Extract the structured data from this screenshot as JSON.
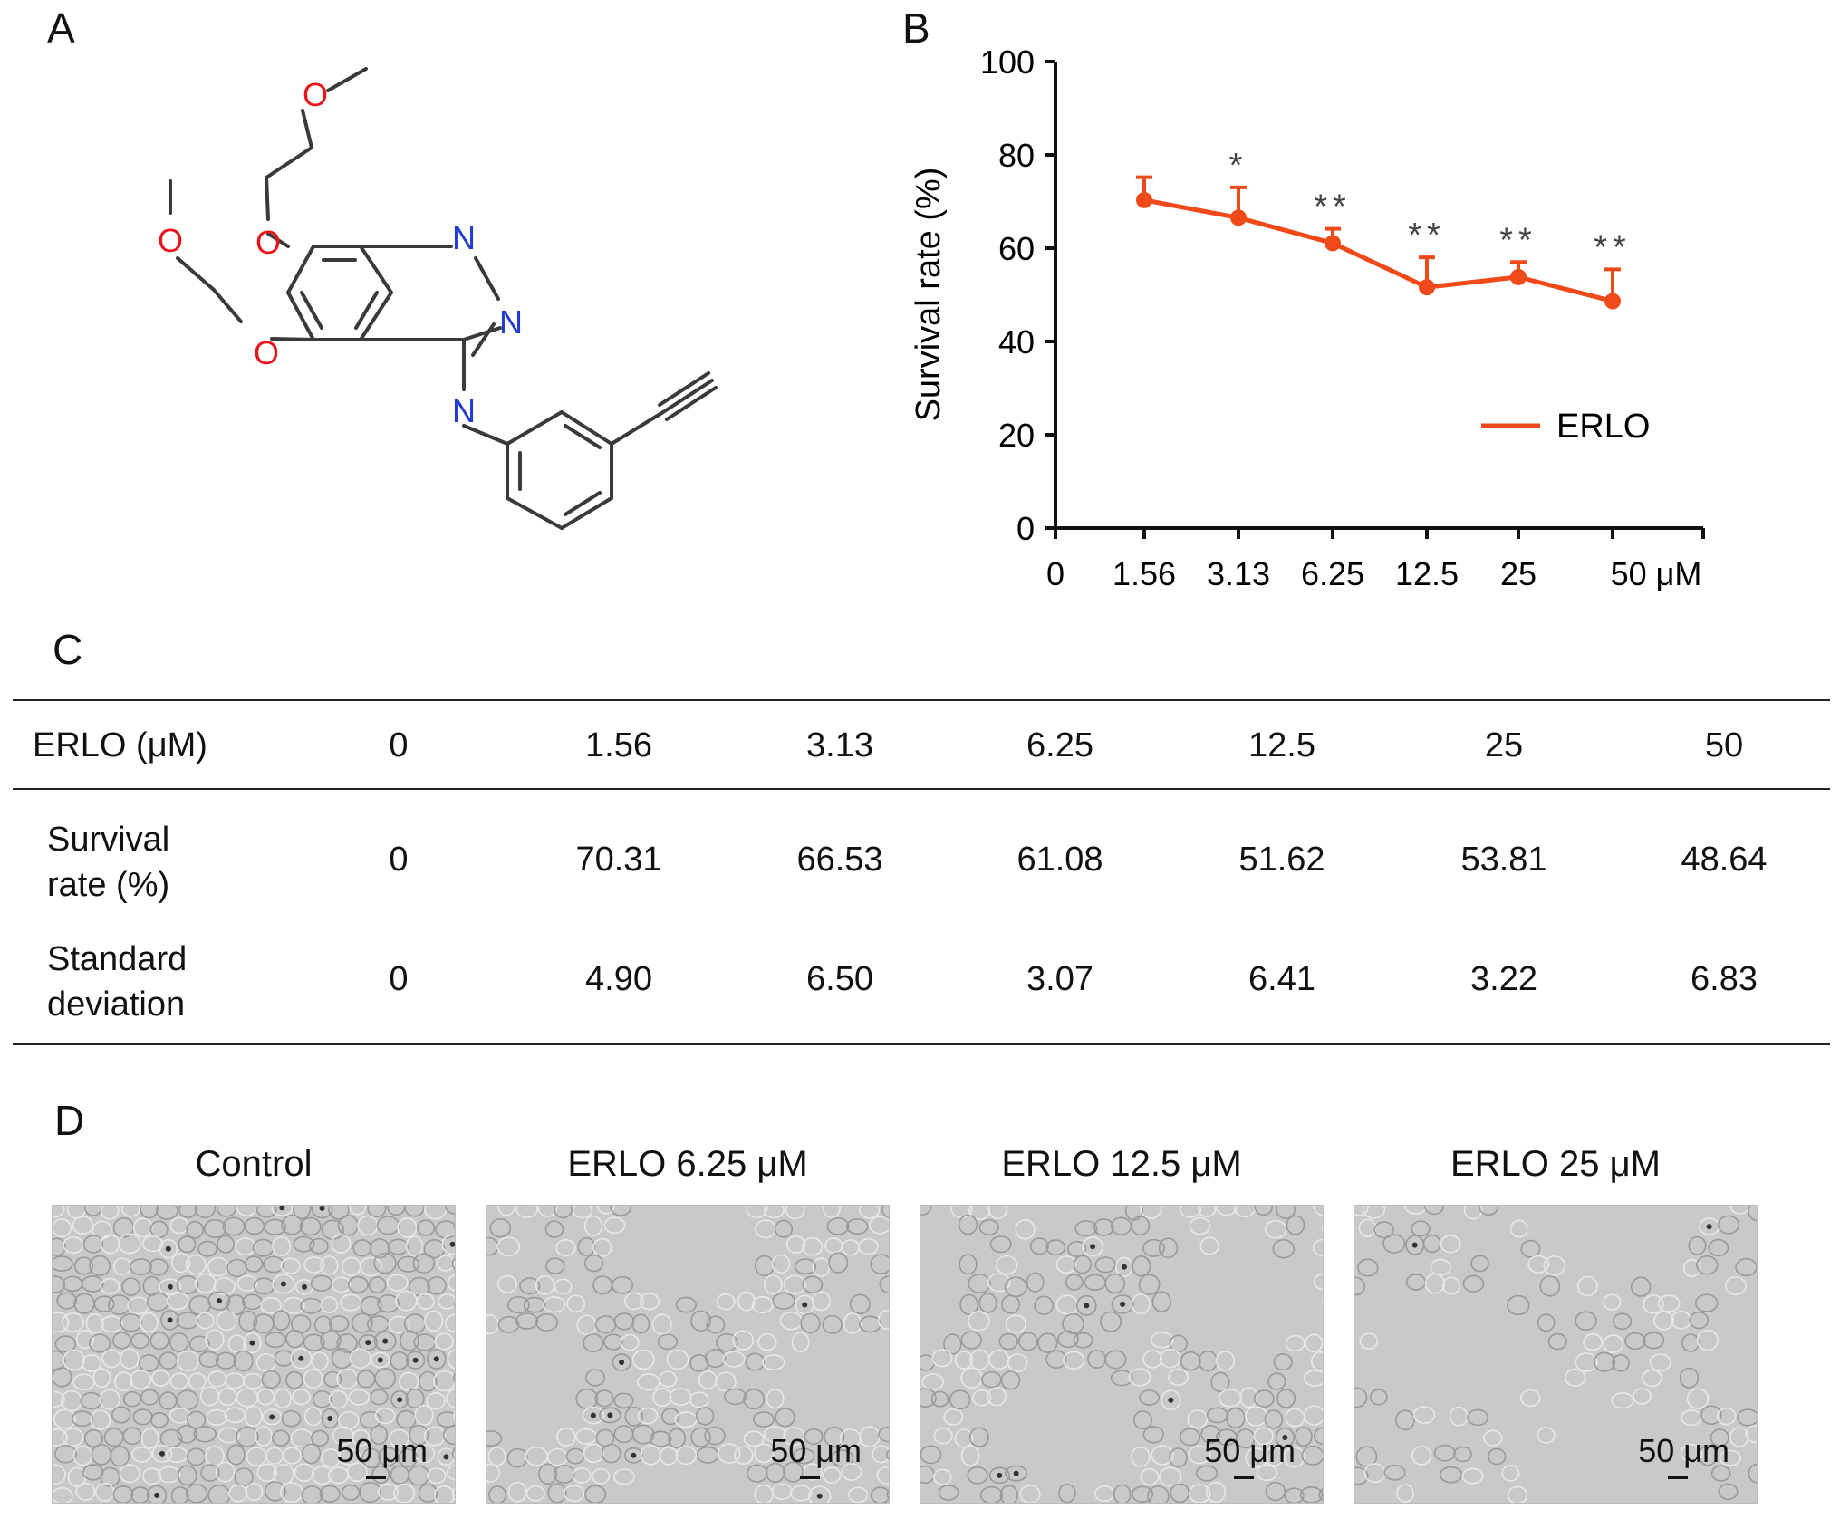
{
  "panels": {
    "a": "A",
    "b": "B",
    "c": "C",
    "d": "D"
  },
  "molecule": {
    "atoms": {
      "o1": "O",
      "o2": "O",
      "o3": "O",
      "o4": "O",
      "n1": "N",
      "n2": "N",
      "n3": "N"
    },
    "colors": {
      "oxygen": "#e8141c",
      "nitrogen": "#1f3bd6",
      "bond": "#3a3a3a"
    }
  },
  "chart_data": {
    "type": "line",
    "x": [
      "0",
      "1.56",
      "3.13",
      "6.25",
      "12.5",
      "25",
      "50 μM"
    ],
    "series": [
      {
        "name": "ERLO",
        "color": "#f04a1a",
        "x": [
          "1.56",
          "3.13",
          "6.25",
          "12.5",
          "25",
          "50 μM"
        ],
        "values": [
          70.31,
          66.53,
          61.08,
          51.62,
          53.81,
          48.64
        ],
        "error": [
          4.9,
          6.5,
          3.07,
          6.41,
          3.22,
          6.83
        ],
        "significance": [
          "",
          "*",
          "**",
          "**",
          "**",
          "**"
        ]
      }
    ],
    "ylabel": "Survival rate (%)",
    "xlabel": "",
    "ylim": [
      0,
      100
    ],
    "yticks": [
      "0",
      "20",
      "40",
      "60",
      "80",
      "100"
    ],
    "legend_position": "lower-right"
  },
  "table": {
    "header_label": "ERLO (μM)",
    "header_values": [
      "0",
      "1.56",
      "3.13",
      "6.25",
      "12.5",
      "25",
      "50"
    ],
    "rows": [
      {
        "label_line1": "Survival",
        "label_line2": "rate (%)",
        "values": [
          "0",
          "70.31",
          "66.53",
          "61.08",
          "51.62",
          "53.81",
          "48.64"
        ]
      },
      {
        "label_line1": "Standard",
        "label_line2": "deviation",
        "values": [
          "0",
          "4.90",
          "6.50",
          "3.07",
          "6.41",
          "3.22",
          "6.83"
        ]
      }
    ]
  },
  "micrographs": [
    {
      "title": "Control",
      "scale": "50 μm"
    },
    {
      "title": "ERLO 6.25 μM",
      "scale": "50 μm"
    },
    {
      "title": "ERLO 12.5 μM",
      "scale": "50 μm"
    },
    {
      "title": "ERLO 25 μM",
      "scale": "50 μm"
    }
  ]
}
